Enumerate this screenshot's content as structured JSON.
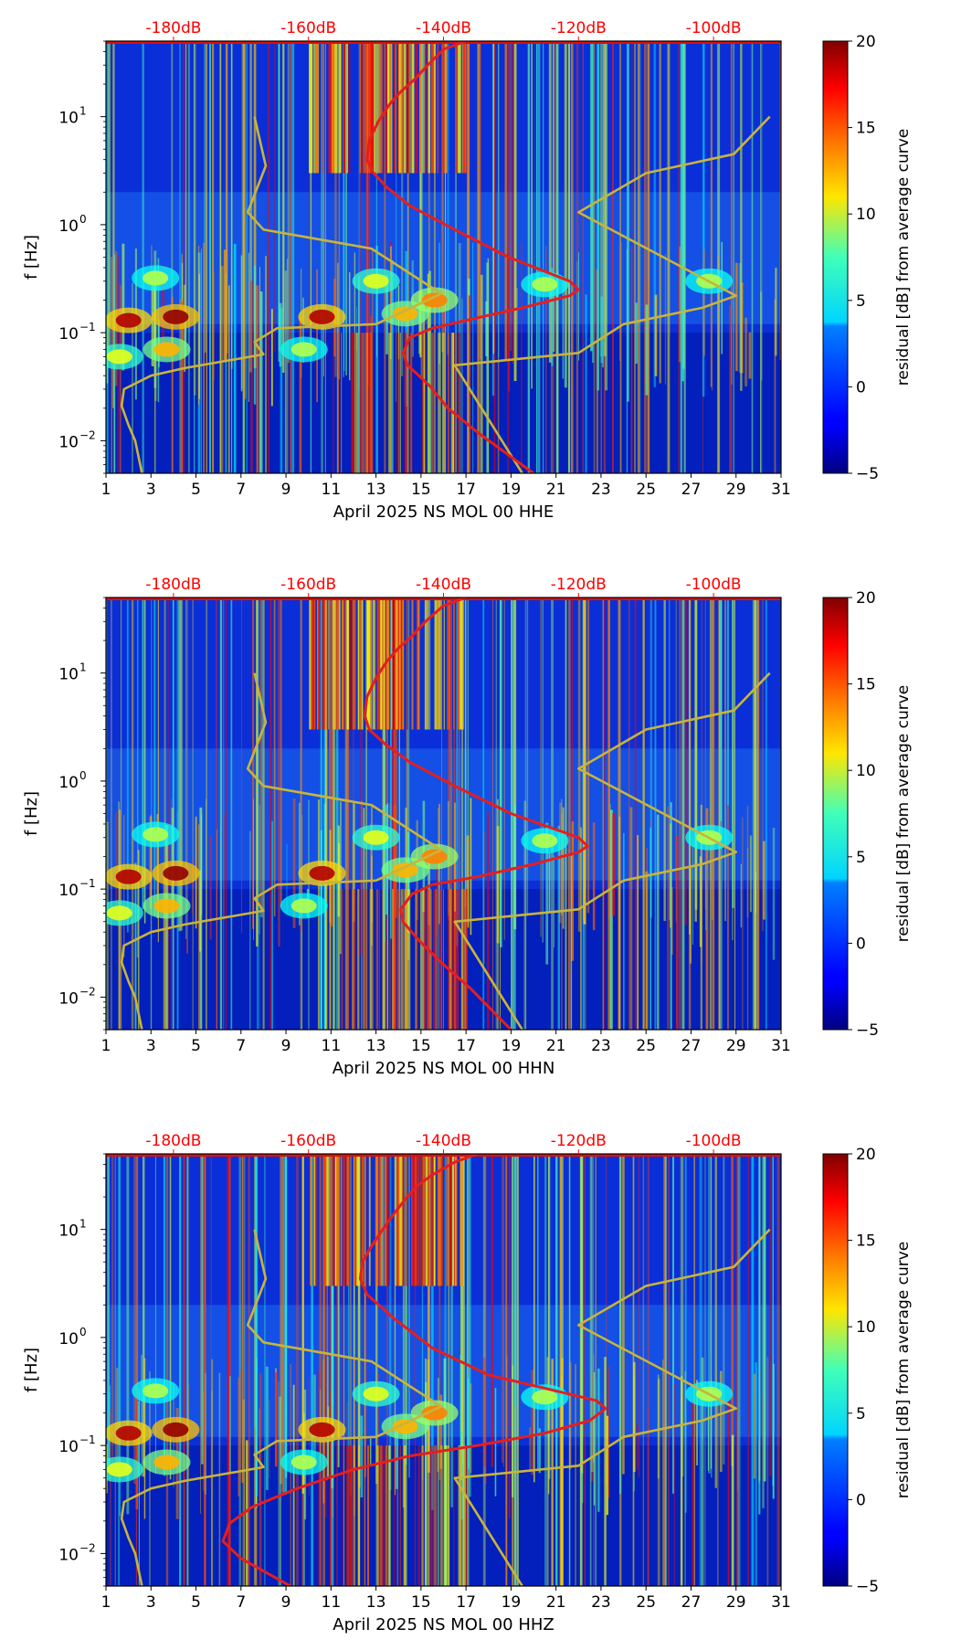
{
  "chart_data": [
    {
      "type": "heatmap",
      "title": "",
      "xlabel": "April 2025 NS MOL 00 HHE",
      "ylabel": "f [Hz]",
      "xlim": [
        1,
        31
      ],
      "ylim": [
        0.005,
        50
      ],
      "yscale": "log",
      "x_ticks": [
        "1",
        "3",
        "5",
        "7",
        "9",
        "11",
        "13",
        "15",
        "17",
        "19",
        "21",
        "23",
        "25",
        "27",
        "29",
        "31"
      ],
      "y_ticks": [
        {
          "label": "10",
          "exp": "−2"
        },
        {
          "label": "10",
          "exp": "−1"
        },
        {
          "label": "10",
          "exp": "0"
        },
        {
          "label": "10",
          "exp": "1"
        }
      ],
      "top_axis_color": "#ff0000",
      "top_ticks": [
        {
          "label": "-180dB",
          "day": 4.0
        },
        {
          "label": "-160dB",
          "day": 10.0
        },
        {
          "label": "-140dB",
          "day": 16.0
        },
        {
          "label": "-120dB",
          "day": 22.0
        },
        {
          "label": "-100dB",
          "day": 28.0
        }
      ],
      "colorbar": {
        "label": "residual [dB] from average curve",
        "min": -5,
        "max": 20,
        "ticks": [
          "20",
          "15",
          "10",
          "5",
          "0",
          "−5"
        ]
      },
      "series": [
        {
          "name": "noise model (yellow)",
          "color": "#c8b43c",
          "day": [
            2.6,
            2.3,
            2.0,
            1.7,
            1.8,
            3.0,
            4.5,
            8.0,
            7.6,
            8.6,
            13.0,
            15.9,
            12.8,
            8.0,
            7.3,
            8.1,
            7.6
          ],
          "freq": [
            0.005,
            0.01,
            0.014,
            0.021,
            0.03,
            0.04,
            0.047,
            0.063,
            0.082,
            0.11,
            0.12,
            0.23,
            0.6,
            0.9,
            1.3,
            3.5,
            10
          ]
        },
        {
          "name": "noise model (yellow, right)",
          "color": "#c8b43c",
          "day": [
            19.5,
            16.5,
            22.0,
            24.0,
            27.5,
            29.0,
            22.0,
            25.0,
            28.9,
            30.5
          ],
          "freq": [
            0.005,
            0.05,
            0.065,
            0.12,
            0.17,
            0.22,
            1.3,
            3.0,
            4.5,
            10
          ]
        },
        {
          "name": "average PSD (red)",
          "color": "#e61e1e",
          "day": [
            20.0,
            17.5,
            16.2,
            15.4,
            14.8,
            14.4,
            14.2,
            14.5,
            15.5,
            17.0,
            19.5,
            21.6,
            22.0,
            21.6,
            18.9,
            16.5,
            14.5,
            13.5,
            12.9,
            12.6,
            12.7,
            13.1,
            13.6,
            14.1,
            14.7,
            15.3,
            16.0,
            17.0
          ],
          "freq": [
            0.005,
            0.012,
            0.02,
            0.032,
            0.042,
            0.05,
            0.065,
            0.09,
            0.11,
            0.13,
            0.17,
            0.22,
            0.25,
            0.3,
            0.5,
            0.9,
            1.5,
            2.2,
            3.0,
            4.0,
            6.0,
            9.0,
            13.0,
            17.0,
            22.0,
            30.0,
            42.0,
            50.0
          ]
        }
      ]
    },
    {
      "type": "heatmap",
      "title": "",
      "xlabel": "April 2025 NS MOL 00 HHN",
      "ylabel": "f [Hz]",
      "xlim": [
        1,
        31
      ],
      "ylim": [
        0.005,
        50
      ],
      "yscale": "log",
      "x_ticks": [
        "1",
        "3",
        "5",
        "7",
        "9",
        "11",
        "13",
        "15",
        "17",
        "19",
        "21",
        "23",
        "25",
        "27",
        "29",
        "31"
      ],
      "y_ticks": [
        {
          "label": "10",
          "exp": "−2"
        },
        {
          "label": "10",
          "exp": "−1"
        },
        {
          "label": "10",
          "exp": "0"
        },
        {
          "label": "10",
          "exp": "1"
        }
      ],
      "top_axis_color": "#ff0000",
      "top_ticks": [
        {
          "label": "-180dB",
          "day": 4.0
        },
        {
          "label": "-160dB",
          "day": 10.0
        },
        {
          "label": "-140dB",
          "day": 16.0
        },
        {
          "label": "-120dB",
          "day": 22.0
        },
        {
          "label": "-100dB",
          "day": 28.0
        }
      ],
      "colorbar": {
        "label": "residual [dB] from average curve",
        "min": -5,
        "max": 20,
        "ticks": [
          "20",
          "15",
          "10",
          "5",
          "0",
          "−5"
        ]
      },
      "series": [
        {
          "name": "noise model (yellow)",
          "color": "#c8b43c",
          "day": [
            2.6,
            2.3,
            2.0,
            1.7,
            1.8,
            3.0,
            4.5,
            8.0,
            7.6,
            8.6,
            13.0,
            15.9,
            12.8,
            8.0,
            7.3,
            8.1,
            7.6
          ],
          "freq": [
            0.005,
            0.01,
            0.014,
            0.021,
            0.03,
            0.04,
            0.047,
            0.063,
            0.082,
            0.11,
            0.12,
            0.23,
            0.6,
            0.9,
            1.3,
            3.5,
            10
          ]
        },
        {
          "name": "noise model (yellow, right)",
          "color": "#c8b43c",
          "day": [
            19.5,
            16.5,
            22.0,
            24.0,
            27.5,
            29.0,
            22.0,
            25.0,
            28.9,
            30.5
          ],
          "freq": [
            0.005,
            0.05,
            0.065,
            0.12,
            0.17,
            0.22,
            1.3,
            3.0,
            4.5,
            10
          ]
        },
        {
          "name": "average PSD (red)",
          "color": "#e61e1e",
          "day": [
            19.0,
            17.2,
            16.0,
            15.0,
            14.5,
            14.2,
            14.1,
            14.6,
            15.5,
            17.5,
            20.0,
            22.0,
            22.4,
            22.0,
            19.0,
            16.5,
            14.5,
            13.4,
            12.7,
            12.5,
            12.6,
            13.0,
            13.5,
            14.0,
            14.6,
            15.2,
            16.0,
            17.0
          ],
          "freq": [
            0.005,
            0.012,
            0.02,
            0.032,
            0.042,
            0.05,
            0.065,
            0.09,
            0.11,
            0.13,
            0.17,
            0.22,
            0.25,
            0.3,
            0.5,
            0.9,
            1.5,
            2.2,
            3.0,
            4.0,
            6.0,
            9.0,
            13.0,
            17.0,
            22.0,
            30.0,
            42.0,
            50.0
          ]
        }
      ]
    },
    {
      "type": "heatmap",
      "title": "",
      "xlabel": "April 2025 NS MOL 00 HHZ",
      "ylabel": "f [Hz]",
      "xlim": [
        1,
        31
      ],
      "ylim": [
        0.005,
        50
      ],
      "yscale": "log",
      "x_ticks": [
        "1",
        "3",
        "5",
        "7",
        "9",
        "11",
        "13",
        "15",
        "17",
        "19",
        "21",
        "23",
        "25",
        "27",
        "29",
        "31"
      ],
      "y_ticks": [
        {
          "label": "10",
          "exp": "−2"
        },
        {
          "label": "10",
          "exp": "−1"
        },
        {
          "label": "10",
          "exp": "0"
        },
        {
          "label": "10",
          "exp": "1"
        }
      ],
      "top_axis_color": "#ff0000",
      "top_ticks": [
        {
          "label": "-180dB",
          "day": 4.0
        },
        {
          "label": "-160dB",
          "day": 10.0
        },
        {
          "label": "-140dB",
          "day": 16.0
        },
        {
          "label": "-120dB",
          "day": 22.0
        },
        {
          "label": "-100dB",
          "day": 28.0
        }
      ],
      "colorbar": {
        "label": "residual [dB] from average curve",
        "min": -5,
        "max": 20,
        "ticks": [
          "20",
          "15",
          "10",
          "5",
          "0",
          "−5"
        ]
      },
      "series": [
        {
          "name": "noise model (yellow)",
          "color": "#c8b43c",
          "day": [
            2.6,
            2.3,
            2.0,
            1.7,
            1.8,
            3.0,
            4.5,
            8.0,
            7.6,
            8.6,
            13.0,
            15.9,
            12.8,
            8.0,
            7.3,
            8.1,
            7.6
          ],
          "freq": [
            0.005,
            0.01,
            0.014,
            0.021,
            0.03,
            0.04,
            0.047,
            0.063,
            0.082,
            0.11,
            0.12,
            0.23,
            0.6,
            0.9,
            1.3,
            3.5,
            10
          ]
        },
        {
          "name": "noise model (yellow, right)",
          "color": "#c8b43c",
          "day": [
            19.5,
            16.5,
            22.0,
            24.0,
            27.5,
            29.0,
            22.0,
            25.0,
            28.9,
            30.5
          ],
          "freq": [
            0.005,
            0.05,
            0.065,
            0.12,
            0.17,
            0.22,
            1.3,
            3.0,
            4.5,
            10
          ]
        },
        {
          "name": "average PSD (red)",
          "color": "#e61e1e",
          "day": [
            9.2,
            7.0,
            6.2,
            6.5,
            7.5,
            9.5,
            12.0,
            14.5,
            17.5,
            20.5,
            22.5,
            23.2,
            22.8,
            21.0,
            18.0,
            15.5,
            13.8,
            12.6,
            12.3,
            12.4,
            12.8,
            13.3,
            13.8,
            14.3,
            14.8,
            15.5,
            16.5,
            17.5
          ],
          "freq": [
            0.005,
            0.009,
            0.013,
            0.019,
            0.027,
            0.04,
            0.06,
            0.08,
            0.1,
            0.13,
            0.17,
            0.22,
            0.26,
            0.32,
            0.45,
            0.8,
            1.5,
            2.5,
            3.5,
            5.0,
            7.0,
            10.0,
            14.0,
            19.0,
            25.0,
            32.0,
            42.0,
            50.0
          ]
        }
      ]
    }
  ]
}
